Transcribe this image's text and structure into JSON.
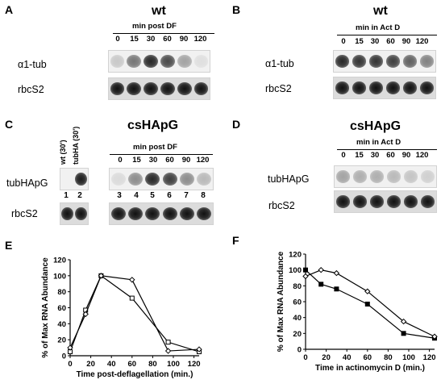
{
  "panels": {
    "A": {
      "letter": "A",
      "title": "wt",
      "time_label": "min post DF",
      "ticks": [
        "0",
        "15",
        "30",
        "60",
        "90",
        "120"
      ],
      "rows": [
        "α1-tub",
        "rbcS2"
      ],
      "intensity": {
        "alpha1_tub": [
          0.18,
          0.55,
          0.9,
          0.75,
          0.35,
          0.08
        ],
        "rbcS2": [
          1,
          1,
          1,
          1,
          1,
          1
        ]
      }
    },
    "B": {
      "letter": "B",
      "title": "wt",
      "time_label": "min in Act D",
      "ticks": [
        "0",
        "15",
        "30",
        "60",
        "90",
        "120"
      ],
      "rows": [
        "α1-tub",
        "rbcS2"
      ],
      "intensity": {
        "alpha1_tub": [
          0.9,
          0.85,
          0.85,
          0.8,
          0.65,
          0.5
        ],
        "rbcS2": [
          1,
          1,
          1,
          1,
          1,
          1
        ]
      }
    },
    "C": {
      "letter": "C",
      "title": "csHApG",
      "time_label": "min post DF",
      "control_labels": [
        "wt (30')",
        "tubHA (30')"
      ],
      "ticks": [
        "0",
        "15",
        "30",
        "60",
        "90",
        "120"
      ],
      "lanes": [
        "1",
        "2",
        "3",
        "4",
        "5",
        "6",
        "7",
        "8"
      ],
      "rows": [
        "tubHApG",
        "rbcS2"
      ],
      "intensity": {
        "tubHApG": [
          0,
          0.95,
          0.1,
          0.45,
          0.9,
          0.8,
          0.45,
          0.25
        ],
        "rbcS2": [
          1,
          1,
          1,
          1,
          1,
          1,
          1,
          1
        ]
      }
    },
    "D": {
      "letter": "D",
      "title": "csHApG",
      "time_label": "min in Act D",
      "ticks": [
        "0",
        "15",
        "30",
        "60",
        "90",
        "120"
      ],
      "rows": [
        "tubHApG",
        "rbcS2"
      ],
      "intensity": {
        "tubHApG": [
          0.35,
          0.3,
          0.3,
          0.25,
          0.2,
          0.15
        ],
        "rbcS2": [
          1,
          1,
          1,
          1,
          1,
          1
        ]
      }
    },
    "E": {
      "letter": "E"
    },
    "F": {
      "letter": "F"
    }
  },
  "chart_data": [
    {
      "type": "line",
      "panel": "E",
      "xlabel": "Time post-deflagellation (min.)",
      "ylabel": "% of Max RNA Abundance",
      "xlim": [
        0,
        125
      ],
      "ylim": [
        0,
        120
      ],
      "xticks": [
        0,
        20,
        40,
        60,
        80,
        100,
        120
      ],
      "yticks": [
        0,
        20,
        40,
        60,
        80,
        100,
        120
      ],
      "series": [
        {
          "marker": "open-square",
          "x": [
            0,
            15,
            30,
            60,
            95,
            125
          ],
          "y": [
            5,
            57,
            100,
            72,
            17,
            5
          ]
        },
        {
          "marker": "open-diamond",
          "x": [
            0,
            15,
            30,
            60,
            95,
            125
          ],
          "y": [
            10,
            52,
            100,
            95,
            6,
            8
          ]
        }
      ]
    },
    {
      "type": "line",
      "panel": "F",
      "xlabel": "Time in actinomycin D (min.)",
      "ylabel": "% of Max RNA Abundance",
      "xlim": [
        0,
        125
      ],
      "ylim": [
        0,
        120
      ],
      "xticks": [
        0,
        20,
        40,
        60,
        80,
        100,
        120
      ],
      "yticks": [
        0,
        20,
        40,
        60,
        80,
        100,
        120
      ],
      "series": [
        {
          "marker": "filled-square",
          "x": [
            0,
            15,
            30,
            60,
            95,
            125
          ],
          "y": [
            100,
            82,
            76,
            57,
            20,
            14
          ]
        },
        {
          "marker": "open-diamond",
          "x": [
            0,
            15,
            30,
            60,
            95,
            125
          ],
          "y": [
            92,
            100,
            96,
            73,
            35,
            16
          ]
        }
      ]
    }
  ]
}
